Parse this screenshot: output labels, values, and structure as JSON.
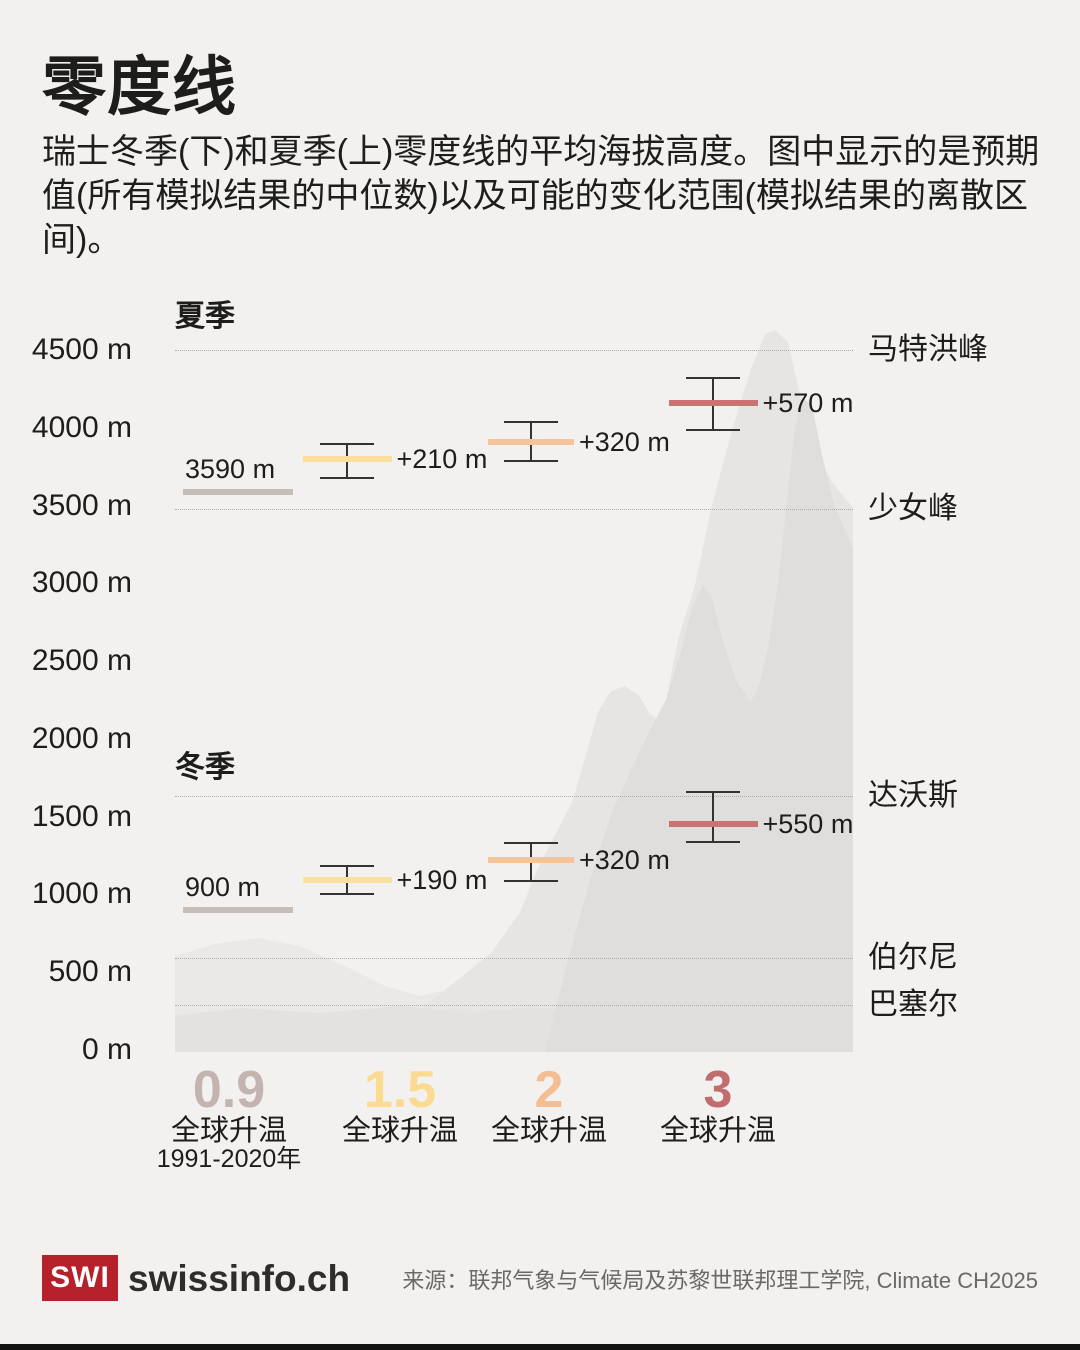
{
  "page": {
    "background": "#f2f1ef"
  },
  "header": {
    "title": "零度线",
    "subtitle": "瑞士冬季(下)和夏季(上)零度线的平均海拔高度。图中显示的是预期值(所有模拟结果的中位数)以及可能的变化范围(模拟结果的离散区间)。"
  },
  "chart_data": {
    "type": "scatter",
    "subtype": "elevation-interval-markers",
    "unit": "m",
    "y_axis": {
      "min": 0,
      "max": 4500,
      "tick_values": [
        4500,
        4000,
        3500,
        3000,
        2500,
        2000,
        1500,
        1000,
        500,
        0
      ],
      "tick_labels": [
        "4500 m",
        "4000 m",
        "3500 m",
        "3000 m",
        "2500 m",
        "2000 m",
        "1500 m",
        "1000 m",
        "500 m",
        "0 m"
      ]
    },
    "landmark_lines": [
      {
        "label": "马特洪峰",
        "elevation": 4500
      },
      {
        "label": "少女峰",
        "elevation": 3480
      },
      {
        "label": "达沃斯",
        "elevation": 1630
      },
      {
        "label": "伯尔尼",
        "elevation": 590
      },
      {
        "label": "巴塞尔",
        "elevation": 290
      }
    ],
    "series": [
      {
        "name": "夏季",
        "baseline": {
          "value": 3590,
          "label": "3590 m",
          "color": "#c6bcb8"
        },
        "points": [
          {
            "category": "1.5",
            "value": 3800,
            "label": "+210 m",
            "hi": 3895,
            "lo": 3675,
            "color": "#fbdf9e"
          },
          {
            "category": "2",
            "value": 3910,
            "label": "+320 m",
            "hi": 4035,
            "lo": 3785,
            "color": "#f5c49a"
          },
          {
            "category": "3",
            "value": 4160,
            "label": "+570 m",
            "hi": 4320,
            "lo": 3985,
            "color": "#c97474"
          }
        ]
      },
      {
        "name": "冬季",
        "baseline": {
          "value": 900,
          "label": "900 m",
          "color": "#c6bcb8"
        },
        "points": [
          {
            "category": "1.5",
            "value": 1090,
            "label": "+190 m",
            "hi": 1185,
            "lo": 1000,
            "color": "#fbdf9e"
          },
          {
            "category": "2",
            "value": 1220,
            "label": "+320 m",
            "hi": 1330,
            "lo": 1085,
            "color": "#f5c49a"
          },
          {
            "category": "3",
            "value": 1450,
            "label": "+550 m",
            "hi": 1660,
            "lo": 1335,
            "color": "#c97474"
          }
        ]
      }
    ],
    "x_categories": [
      {
        "number": "0.9",
        "label": "全球升温",
        "sublabel": "1991-2020年",
        "color": "#c3b4b0"
      },
      {
        "number": "1.5",
        "label": "全球升温",
        "sublabel": "",
        "color": "#fbda92"
      },
      {
        "number": "2",
        "label": "全球升温",
        "sublabel": "",
        "color": "#f4bd92"
      },
      {
        "number": "3",
        "label": "全球升温",
        "sublabel": "",
        "color": "#c26d6d"
      }
    ],
    "grid": "dotted lines at landmark elevations only",
    "legend": "none"
  },
  "footer": {
    "logo_text": "SWI",
    "logo_color": "#b6202a",
    "brand": "swissinfo.ch",
    "source": "来源：联邦气象与气候局及苏黎世联邦理工学院, Climate CH2025"
  }
}
